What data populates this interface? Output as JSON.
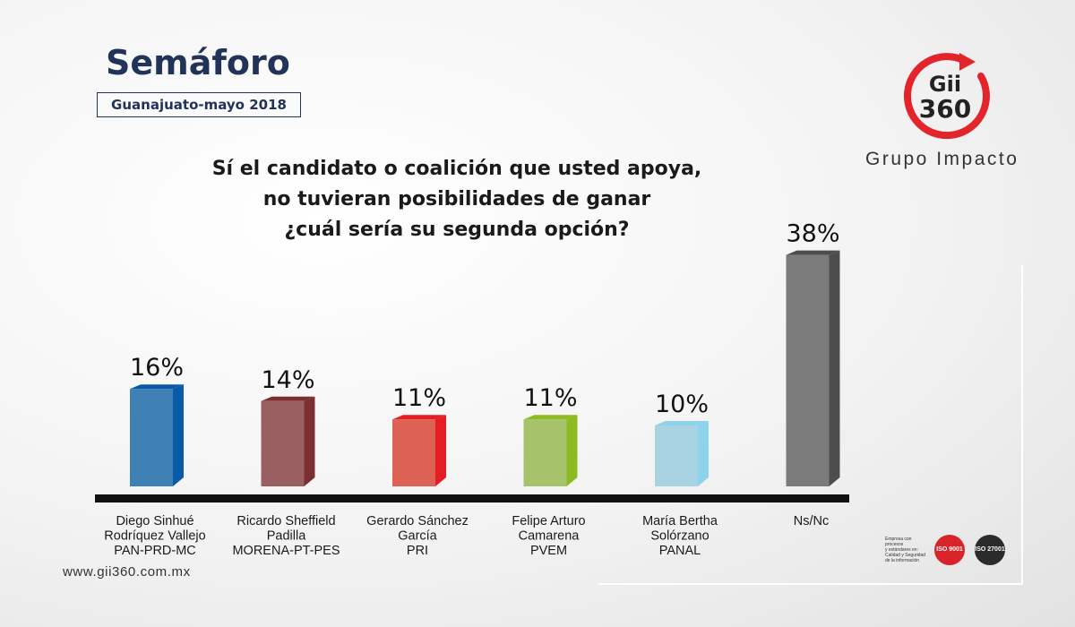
{
  "header": {
    "title": "Semáforo",
    "subtitle": "Guanajuato-mayo 2018"
  },
  "question": {
    "lines": [
      "Sí el candidato o coalición que usted apoya,",
      "no tuvieran posibilidades de ganar",
      "¿cuál sería su segunda opción?"
    ]
  },
  "brand": {
    "logo_line1": "Gii",
    "logo_line2": "360",
    "name": "Grupo Impacto",
    "logo_color": "#e3252b",
    "website": "www.gii360.com.mx"
  },
  "certifications": {
    "text_lines": [
      "Empresa con procesos",
      "y estándares en:",
      "Calidad y Seguridad",
      "de la información"
    ],
    "badges": [
      {
        "label": "ISO 9001",
        "color": "#d8232a"
      },
      {
        "label": "ISO 27001",
        "color": "#2b2b2b"
      }
    ]
  },
  "chart_data": {
    "type": "bar",
    "title": "Sí el candidato o coalición que usted apoya, no tuvieran posibilidades de ganar ¿cuál sería su segunda opción?",
    "categories": [
      [
        "Diego Sinhué",
        "Rodríquez Vallejo",
        "PAN-PRD-MC"
      ],
      [
        "Ricardo Sheffield",
        "Padilla",
        "MORENA-PT-PES"
      ],
      [
        "Gerardo Sánchez",
        "García",
        "PRI"
      ],
      [
        "Felipe Arturo",
        "Camarena",
        "PVEM"
      ],
      [
        "María Bertha",
        "Solórzano",
        "PANAL"
      ],
      [
        "Ns/Nc"
      ]
    ],
    "values": [
      16,
      14,
      11,
      11,
      10,
      38
    ],
    "value_labels": [
      "16%",
      "14%",
      "11%",
      "11%",
      "10%",
      "38%"
    ],
    "colors": [
      "#3f80b5",
      "#9a5f60",
      "#dd6255",
      "#a6c26a",
      "#a9d3e2",
      "#7b7b7b"
    ],
    "side_colors": [
      "#0a5aa8",
      "#7b2f31",
      "#e51e24",
      "#8dbb22",
      "#8ed3ec",
      "#4d4d4d"
    ],
    "unit": "%",
    "ylim": [
      0,
      40
    ],
    "grid": false,
    "legend": "none"
  }
}
